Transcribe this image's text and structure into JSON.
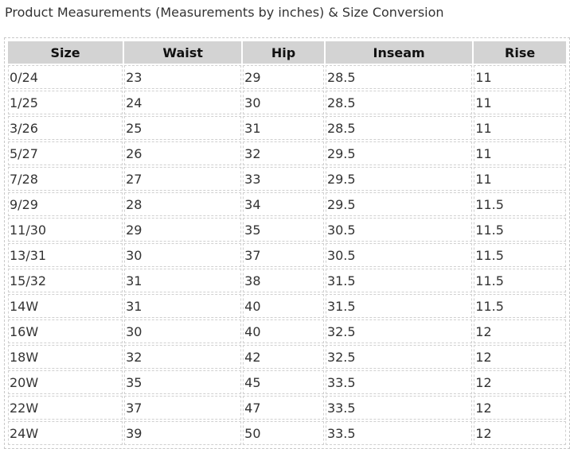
{
  "title": "Product Measurements (Measurements by inches) & Size Conversion",
  "table": {
    "headers": [
      "Size",
      "Waist",
      "Hip",
      "Inseam",
      "Rise"
    ],
    "rows": [
      [
        "0/24",
        "23",
        "29",
        "28.5",
        "11"
      ],
      [
        "1/25",
        "24",
        "30",
        "28.5",
        "11"
      ],
      [
        "3/26",
        "25",
        "31",
        "28.5",
        "11"
      ],
      [
        "5/27",
        "26",
        "32",
        "29.5",
        "11"
      ],
      [
        "7/28",
        "27",
        "33",
        "29.5",
        "11"
      ],
      [
        "9/29",
        "28",
        "34",
        "29.5",
        "11.5"
      ],
      [
        "11/30",
        "29",
        "35",
        "30.5",
        "11.5"
      ],
      [
        "13/31",
        "30",
        "37",
        "30.5",
        "11.5"
      ],
      [
        "15/32",
        "31",
        "38",
        "31.5",
        "11.5"
      ],
      [
        "14W",
        "31",
        "40",
        "31.5",
        "11.5"
      ],
      [
        "16W",
        "30",
        "40",
        "32.5",
        "12"
      ],
      [
        "18W",
        "32",
        "42",
        "32.5",
        "12"
      ],
      [
        "20W",
        "35",
        "45",
        "33.5",
        "12"
      ],
      [
        "22W",
        "37",
        "47",
        "33.5",
        "12"
      ],
      [
        "24W",
        "39",
        "50",
        "33.5",
        "12"
      ]
    ]
  }
}
